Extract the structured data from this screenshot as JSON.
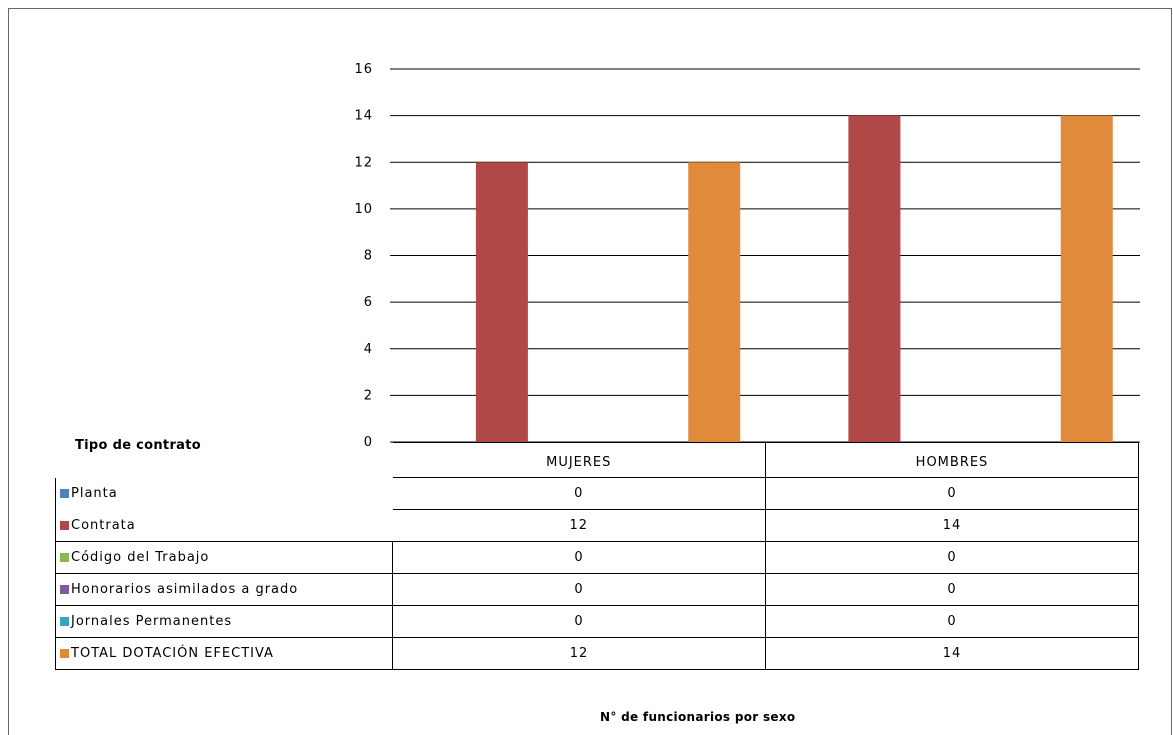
{
  "chart_data": {
    "type": "bar",
    "categories": [
      "MUJERES",
      "HOMBRES"
    ],
    "series": [
      {
        "name": "Planta",
        "color": "#4f81bd",
        "values": [
          0,
          0
        ]
      },
      {
        "name": "Contrata",
        "color": "#b04848",
        "values": [
          12,
          14
        ]
      },
      {
        "name": "Código del Trabajo",
        "color": "#8db84a",
        "values": [
          0,
          0
        ]
      },
      {
        "name": "Honorarios asimilados a grado",
        "color": "#7e5f9e",
        "values": [
          0,
          0
        ]
      },
      {
        "name": "Jornales Permanentes",
        "color": "#36a4c0",
        "values": [
          0,
          0
        ]
      },
      {
        "name": "TOTAL DOTACIÓN EFECTIVA",
        "color": "#e08a3c",
        "values": [
          12,
          14
        ]
      }
    ],
    "ylim": [
      0,
      16
    ],
    "yticks": [
      "0",
      "2",
      "4",
      "6",
      "8",
      "10",
      "12",
      "14",
      "16"
    ],
    "grid": true,
    "legend_title": "Tipo de contrato",
    "xlabel": "N° de funcionarios por sexo",
    "ylabel": ""
  }
}
